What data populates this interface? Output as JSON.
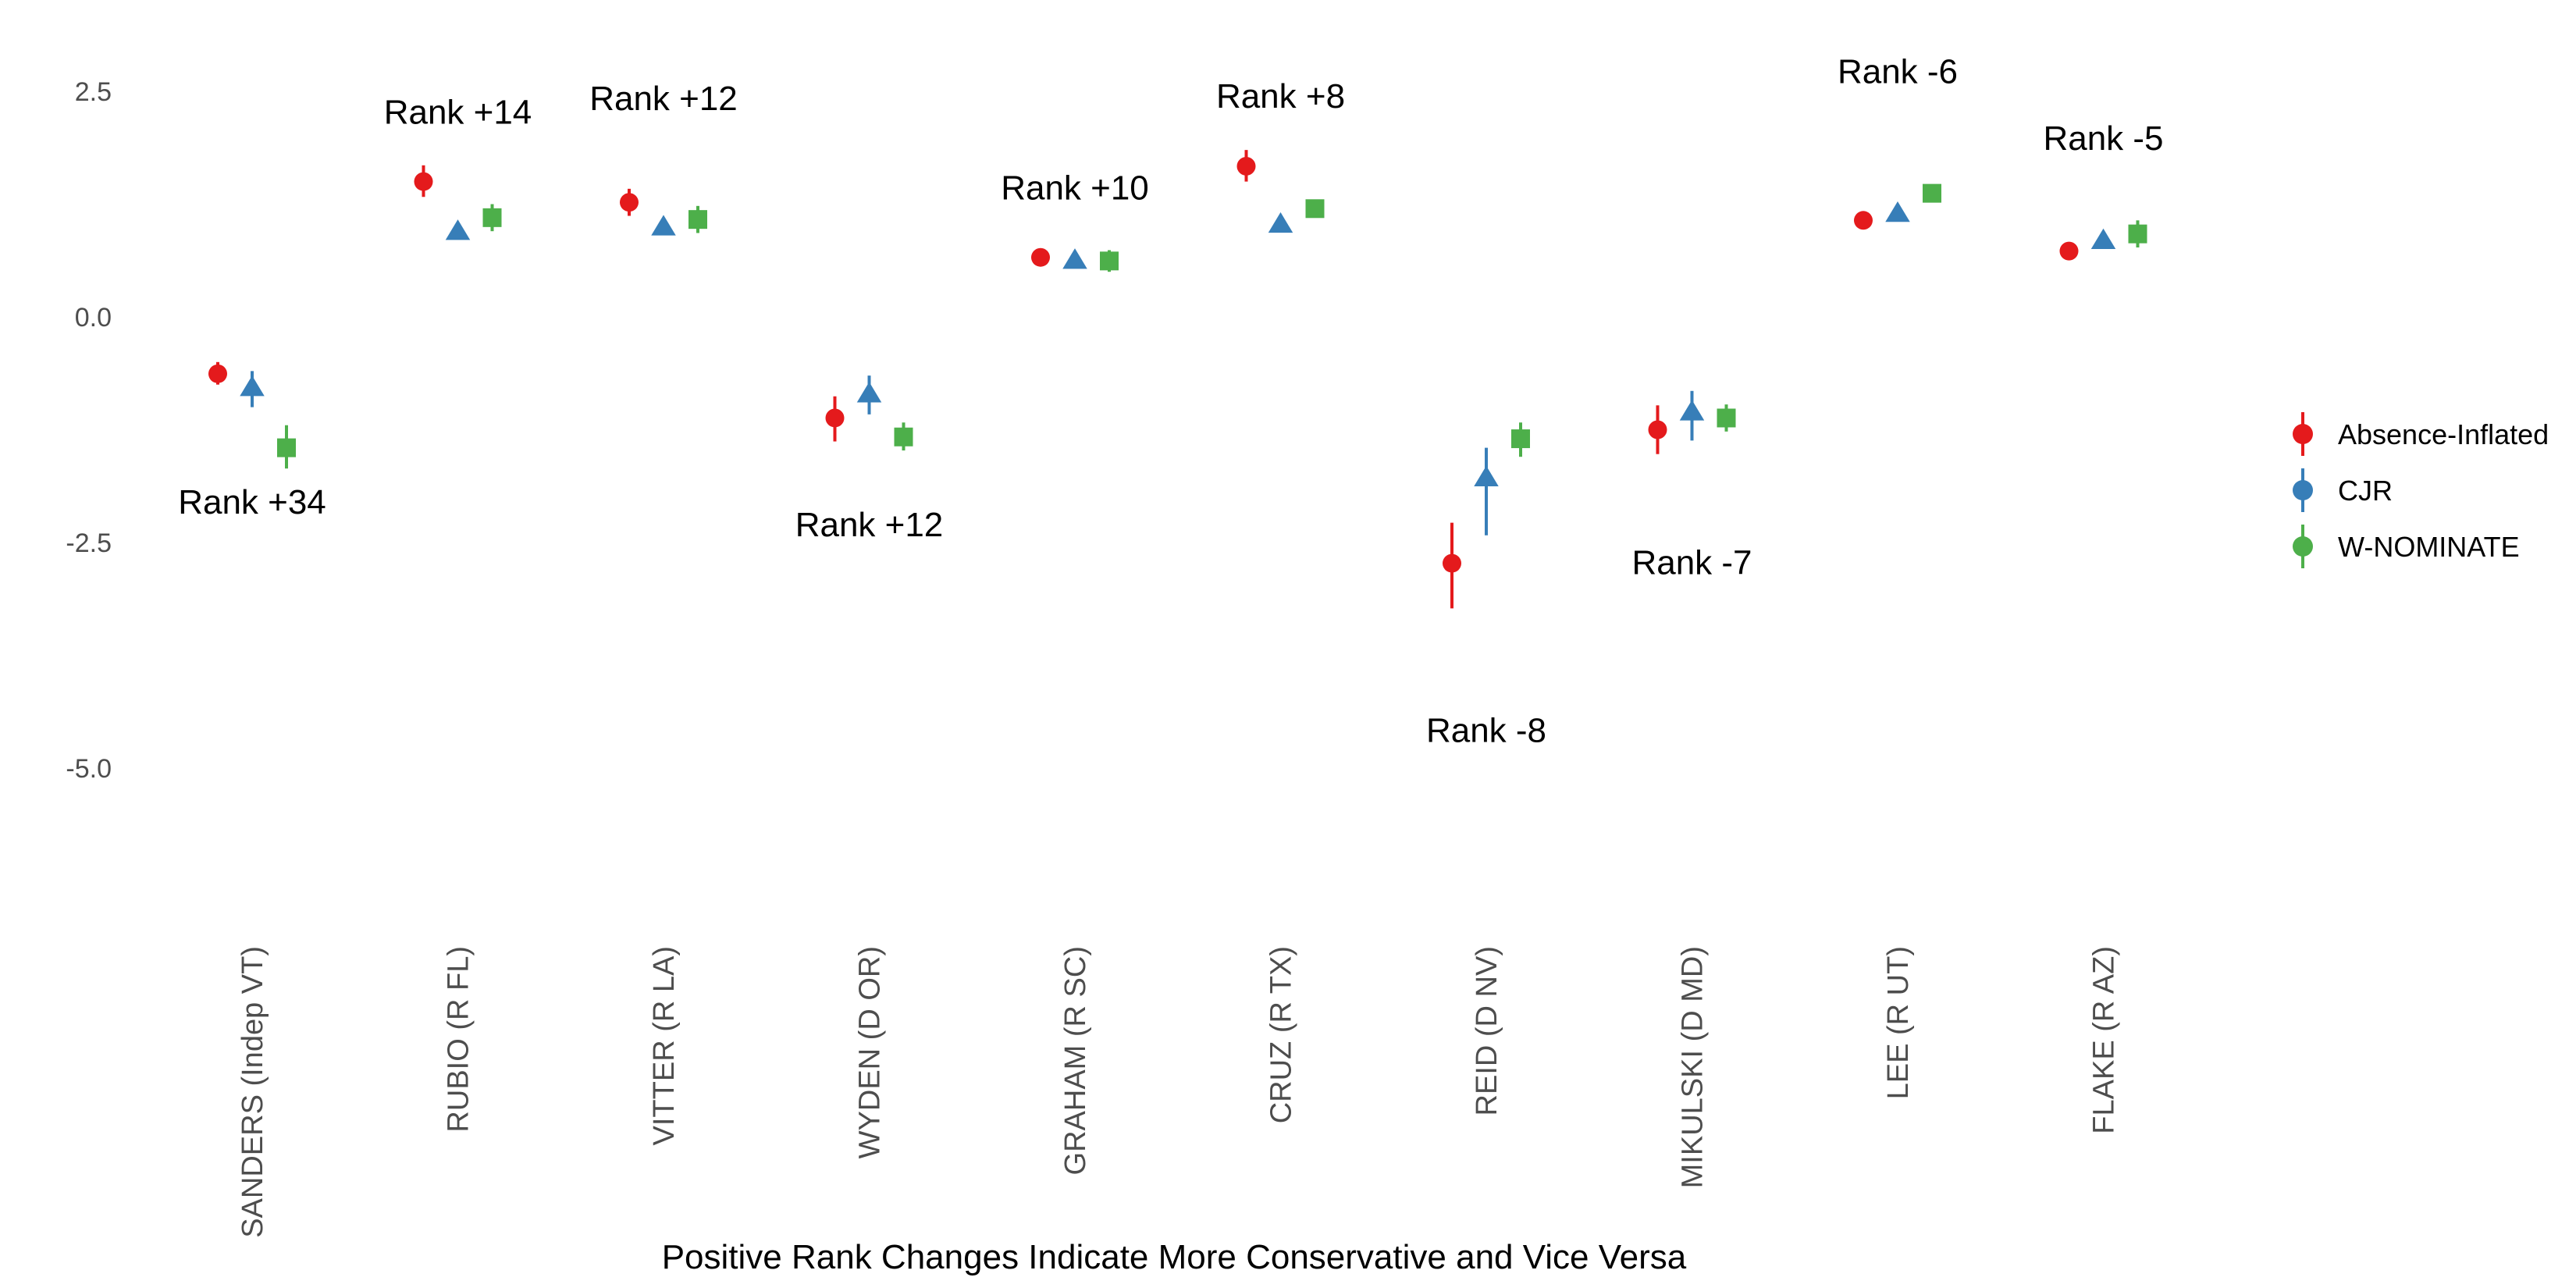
{
  "chart_data": {
    "type": "scatter",
    "xlabel": "Positive Rank Changes Indicate More Conservative and Vice Versa",
    "ylabel": "",
    "ylim": [
      -6.2,
      3.2
    ],
    "yticks": [
      2.5,
      0.0,
      -2.5,
      -5.0
    ],
    "ytick_labels": [
      "2.5",
      "0.0",
      "-2.5",
      "-5.0"
    ],
    "grid": false,
    "legend_position": "right",
    "categories": [
      "SANDERS (Indep VT)",
      "RUBIO (R FL)",
      "VITTER (R LA)",
      "WYDEN (D OR)",
      "GRAHAM (R SC)",
      "CRUZ (R TX)",
      "REID (D NV)",
      "MIKULSKI (D MD)",
      "LEE (R UT)",
      "FLAKE (R AZ)"
    ],
    "series": [
      {
        "name": "Absence-Inflated",
        "color": "#E41A1C",
        "shape": "circle",
        "values": [
          -0.63,
          1.5,
          1.27,
          -1.12,
          0.66,
          1.67,
          -2.73,
          -1.25,
          1.07,
          0.73
        ],
        "lower": [
          -0.75,
          1.33,
          1.12,
          -1.38,
          0.6,
          1.5,
          -3.23,
          -1.52,
          1.0,
          0.68
        ],
        "upper": [
          -0.5,
          1.68,
          1.42,
          -0.88,
          0.72,
          1.85,
          -2.28,
          -0.98,
          1.14,
          0.78
        ]
      },
      {
        "name": "CJR",
        "color": "#377EB8",
        "shape": "triangle",
        "values": [
          -0.78,
          0.95,
          1.0,
          -0.85,
          0.63,
          1.03,
          -1.78,
          -1.05,
          1.15,
          0.85
        ],
        "lower": [
          -1.0,
          0.9,
          0.95,
          -1.08,
          0.58,
          0.98,
          -2.42,
          -1.37,
          1.1,
          0.8
        ],
        "upper": [
          -0.6,
          1.0,
          1.05,
          -0.65,
          0.68,
          1.08,
          -1.45,
          -0.82,
          1.2,
          0.9
        ]
      },
      {
        "name": "W-NOMINATE",
        "color": "#4DAF4A",
        "shape": "square",
        "values": [
          -1.45,
          1.1,
          1.08,
          -1.33,
          0.62,
          1.2,
          -1.35,
          -1.12,
          1.37,
          0.92
        ],
        "lower": [
          -1.68,
          0.95,
          0.93,
          -1.48,
          0.5,
          1.12,
          -1.55,
          -1.27,
          1.3,
          0.77
        ],
        "upper": [
          -1.2,
          1.25,
          1.23,
          -1.17,
          0.74,
          1.28,
          -1.17,
          -0.97,
          1.44,
          1.07
        ]
      }
    ],
    "annotations": [
      {
        "text": "Rank +34",
        "category": "SANDERS (Indep VT)",
        "y": -2.05
      },
      {
        "text": "Rank +14",
        "category": "RUBIO (R FL)",
        "y": 2.27
      },
      {
        "text": "Rank +12",
        "category": "VITTER (R LA)",
        "y": 2.42
      },
      {
        "text": "Rank +12",
        "category": "WYDEN (D OR)",
        "y": -2.3
      },
      {
        "text": "Rank +10",
        "category": "GRAHAM (R SC)",
        "y": 1.43
      },
      {
        "text": "Rank +8",
        "category": "CRUZ (R TX)",
        "y": 2.45
      },
      {
        "text": "Rank -8",
        "category": "REID (D NV)",
        "y": -4.58
      },
      {
        "text": "Rank -7",
        "category": "MIKULSKI (D MD)",
        "y": -2.72
      },
      {
        "text": "Rank -6",
        "category": "LEE (R UT)",
        "y": 2.72
      },
      {
        "text": "Rank -5",
        "category": "FLAKE (R AZ)",
        "y": 1.98
      }
    ]
  }
}
